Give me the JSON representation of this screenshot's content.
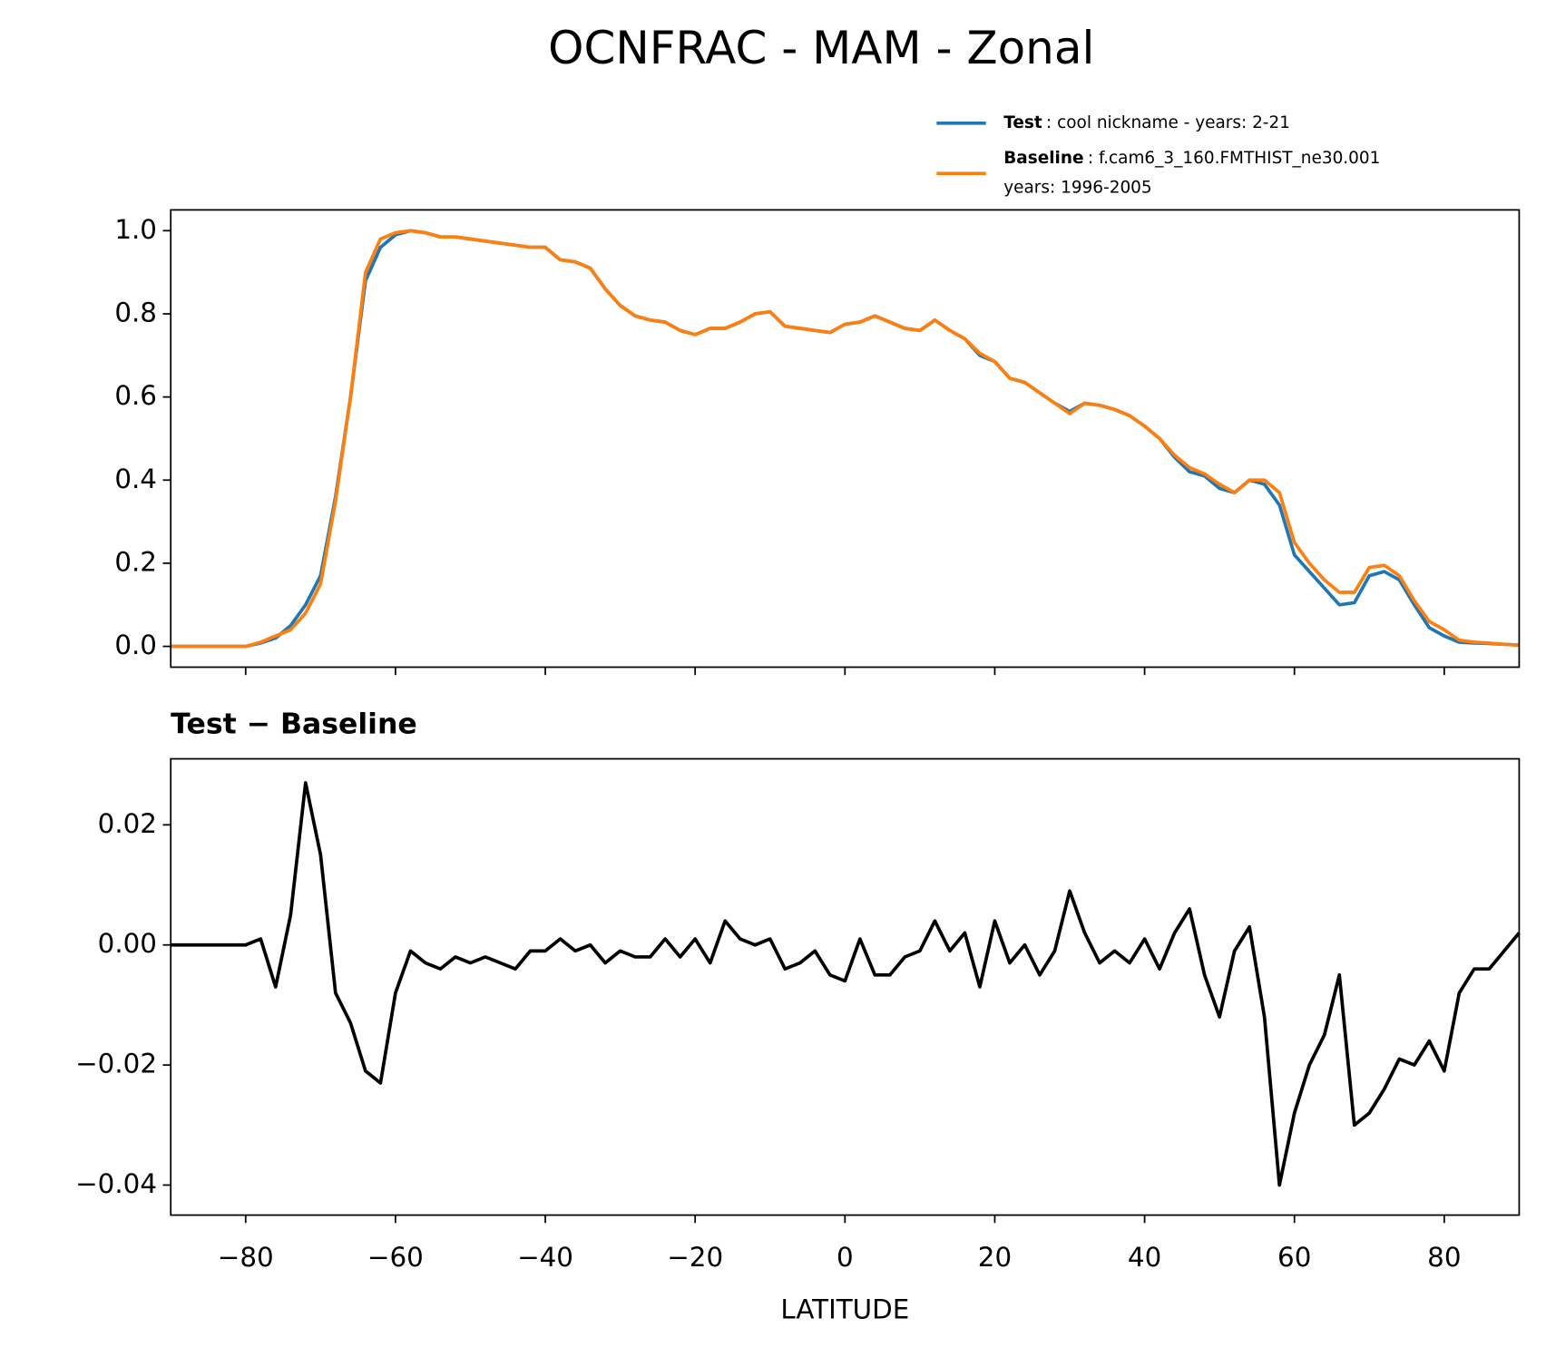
{
  "title": "OCNFRAC - MAM - Zonal",
  "chart_data": [
    {
      "type": "line",
      "x": [
        -90,
        -88,
        -86,
        -84,
        -82,
        -80,
        -78,
        -76,
        -74,
        -72,
        -70,
        -68,
        -66,
        -64,
        -62,
        -60,
        -58,
        -56,
        -54,
        -52,
        -50,
        -48,
        -46,
        -44,
        -42,
        -40,
        -38,
        -36,
        -34,
        -32,
        -30,
        -28,
        -26,
        -24,
        -22,
        -20,
        -18,
        -16,
        -14,
        -12,
        -10,
        -8,
        -6,
        -4,
        -2,
        0,
        2,
        4,
        6,
        8,
        10,
        12,
        14,
        16,
        18,
        20,
        22,
        24,
        26,
        28,
        30,
        32,
        34,
        36,
        38,
        40,
        42,
        44,
        46,
        48,
        50,
        52,
        54,
        56,
        58,
        60,
        62,
        64,
        66,
        68,
        70,
        72,
        74,
        76,
        78,
        80,
        82,
        84,
        86,
        88,
        90
      ],
      "series": [
        {
          "name": "Test",
          "description": [
            ": cool nickname - years: 2-21"
          ],
          "color": "#1f77b4",
          "values": [
            0,
            0,
            0,
            0,
            0,
            0,
            0.008,
            0.02,
            0.05,
            0.1,
            0.17,
            0.36,
            0.6,
            0.88,
            0.96,
            0.99,
            1.0,
            0.995,
            0.985,
            0.985,
            0.98,
            0.975,
            0.97,
            0.965,
            0.96,
            0.96,
            0.93,
            0.925,
            0.91,
            0.86,
            0.82,
            0.795,
            0.785,
            0.78,
            0.76,
            0.75,
            0.765,
            0.765,
            0.78,
            0.8,
            0.805,
            0.77,
            0.765,
            0.76,
            0.755,
            0.775,
            0.78,
            0.795,
            0.78,
            0.765,
            0.76,
            0.785,
            0.76,
            0.74,
            0.7,
            0.685,
            0.645,
            0.635,
            0.61,
            0.585,
            0.565,
            0.585,
            0.58,
            0.57,
            0.555,
            0.53,
            0.5,
            0.455,
            0.42,
            0.41,
            0.38,
            0.37,
            0.4,
            0.39,
            0.34,
            0.22,
            0.18,
            0.14,
            0.1,
            0.105,
            0.17,
            0.18,
            0.16,
            0.1,
            0.045,
            0.025,
            0.01,
            0.008,
            0.007,
            0.005,
            0.003
          ]
        },
        {
          "name": "Baseline",
          "description": [
            ": f.cam6_3_160.FMTHIST_ne30.001",
            "years: 1996-2005"
          ],
          "color": "#ff7f0e",
          "values": [
            0,
            0,
            0,
            0,
            0,
            0,
            0.01,
            0.025,
            0.04,
            0.08,
            0.15,
            0.35,
            0.6,
            0.9,
            0.98,
            0.995,
            1.0,
            0.995,
            0.985,
            0.985,
            0.98,
            0.975,
            0.97,
            0.965,
            0.96,
            0.96,
            0.93,
            0.925,
            0.91,
            0.86,
            0.82,
            0.795,
            0.785,
            0.78,
            0.76,
            0.75,
            0.765,
            0.765,
            0.78,
            0.8,
            0.805,
            0.77,
            0.765,
            0.76,
            0.755,
            0.775,
            0.78,
            0.795,
            0.78,
            0.765,
            0.76,
            0.785,
            0.76,
            0.74,
            0.705,
            0.685,
            0.645,
            0.635,
            0.61,
            0.585,
            0.56,
            0.585,
            0.58,
            0.57,
            0.555,
            0.53,
            0.5,
            0.46,
            0.43,
            0.415,
            0.39,
            0.37,
            0.4,
            0.4,
            0.37,
            0.25,
            0.2,
            0.16,
            0.13,
            0.13,
            0.19,
            0.195,
            0.17,
            0.11,
            0.06,
            0.04,
            0.015,
            0.01,
            0.008,
            0.005,
            0.003
          ]
        }
      ],
      "xlim": [
        -90,
        90
      ],
      "xticks": [
        -80,
        -60,
        -40,
        -20,
        0,
        20,
        40,
        60,
        80
      ],
      "ylim": [
        -0.05,
        1.05
      ],
      "yticks": [
        {
          "value": 0,
          "label": "0.0"
        },
        {
          "value": 0.2,
          "label": "0.2"
        },
        {
          "value": 0.4,
          "label": "0.4"
        },
        {
          "value": 0.6,
          "label": "0.6"
        },
        {
          "value": 0.8,
          "label": "0.8"
        },
        {
          "value": 1,
          "label": "1.0"
        }
      ]
    },
    {
      "type": "line",
      "title": "Test − Baseline",
      "xlabel": "LATITUDE",
      "x": [
        -90,
        -88,
        -86,
        -84,
        -82,
        -80,
        -78,
        -76,
        -74,
        -72,
        -70,
        -68,
        -66,
        -64,
        -62,
        -60,
        -58,
        -56,
        -54,
        -52,
        -50,
        -48,
        -46,
        -44,
        -42,
        -40,
        -38,
        -36,
        -34,
        -32,
        -30,
        -28,
        -26,
        -24,
        -22,
        -20,
        -18,
        -16,
        -14,
        -12,
        -10,
        -8,
        -6,
        -4,
        -2,
        0,
        2,
        4,
        6,
        8,
        10,
        12,
        14,
        16,
        18,
        20,
        22,
        24,
        26,
        28,
        30,
        32,
        34,
        36,
        38,
        40,
        42,
        44,
        46,
        48,
        50,
        52,
        54,
        56,
        58,
        60,
        62,
        64,
        66,
        68,
        70,
        72,
        74,
        76,
        78,
        80,
        82,
        84,
        86,
        88,
        90
      ],
      "series": [
        {
          "name": "Test − Baseline",
          "color": "#000000",
          "values": [
            0,
            0,
            0,
            0,
            0,
            0,
            0.001,
            -0.007,
            0.005,
            0.027,
            0.015,
            -0.008,
            -0.013,
            -0.021,
            -0.023,
            -0.008,
            -0.001,
            -0.003,
            -0.004,
            -0.002,
            -0.003,
            -0.002,
            -0.003,
            -0.004,
            -0.001,
            -0.001,
            0.001,
            -0.001,
            0,
            -0.003,
            -0.001,
            -0.002,
            -0.002,
            0.001,
            -0.002,
            0.001,
            -0.003,
            0.004,
            0.001,
            0,
            0.001,
            -0.004,
            -0.003,
            -0.001,
            -0.005,
            -0.006,
            0.001,
            -0.005,
            -0.005,
            -0.002,
            -0.001,
            0.004,
            -0.001,
            0.002,
            -0.007,
            0.004,
            -0.003,
            0,
            -0.005,
            -0.001,
            0.009,
            0.002,
            -0.003,
            -0.001,
            -0.003,
            0.001,
            -0.004,
            0.002,
            0.006,
            -0.005,
            -0.012,
            -0.001,
            0.003,
            -0.012,
            -0.04,
            -0.028,
            -0.02,
            -0.015,
            -0.005,
            -0.03,
            -0.028,
            -0.024,
            -0.019,
            -0.02,
            -0.016,
            -0.021,
            -0.008,
            -0.004,
            -0.004,
            -0.001,
            0.002
          ]
        }
      ],
      "xlim": [
        -90,
        90
      ],
      "xticks": [
        {
          "value": -80,
          "label": "−80"
        },
        {
          "value": -60,
          "label": "−60"
        },
        {
          "value": -40,
          "label": "−40"
        },
        {
          "value": -20,
          "label": "−20"
        },
        0,
        20,
        40,
        60,
        80
      ],
      "ylim": [
        -0.045,
        0.031
      ],
      "yticks": [
        {
          "value": -0.04,
          "label": "−0.04"
        },
        {
          "value": -0.02,
          "label": "−0.02"
        },
        {
          "value": 0,
          "label": "0.00"
        },
        {
          "value": 0.02,
          "label": "0.02"
        }
      ]
    }
  ]
}
